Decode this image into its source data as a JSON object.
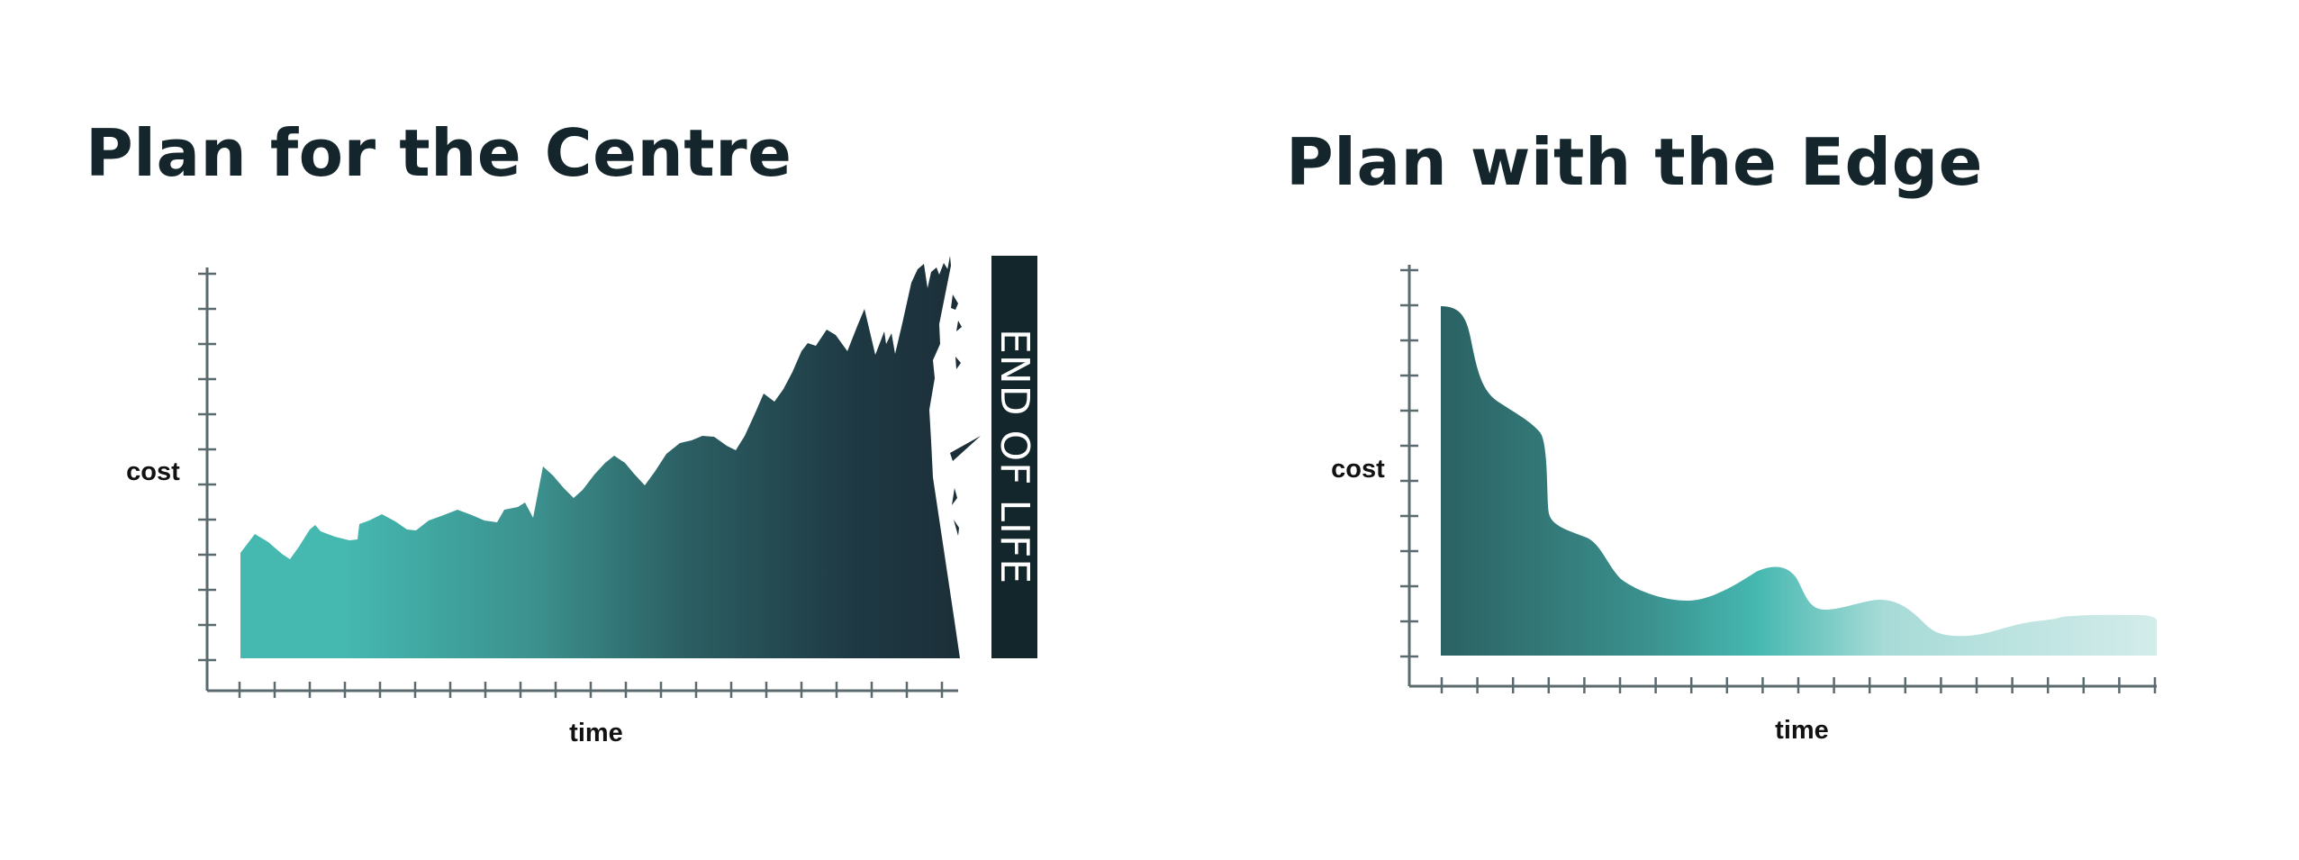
{
  "chart_data": [
    {
      "type": "area",
      "title": "Plan for the Centre",
      "xlabel": "time",
      "ylabel": "cost",
      "x": [
        0,
        1,
        2,
        3,
        4,
        5,
        6,
        7,
        8,
        9,
        10,
        11,
        12,
        13,
        14,
        15,
        16,
        17,
        18,
        19,
        20
      ],
      "values": [
        3.1,
        3.3,
        3.2,
        3.4,
        3.3,
        3.5,
        3.6,
        3.6,
        3.7,
        3.9,
        4.4,
        4.3,
        4.6,
        4.9,
        5.0,
        5.5,
        6.4,
        7.2,
        8.1,
        9.5,
        10.0
      ],
      "annotation": "END OF LIFE",
      "colors": {
        "start": "#45b8b0",
        "end": "#1c2f38",
        "band": "#13262b"
      },
      "grid": false
    },
    {
      "type": "area",
      "title": "Plan with the Edge",
      "xlabel": "time",
      "ylabel": "cost",
      "x": [
        0,
        1,
        2,
        3,
        4,
        5,
        6,
        7,
        8,
        9,
        10,
        11,
        12,
        13,
        14,
        15,
        16,
        17,
        18,
        19,
        20
      ],
      "values": [
        10.0,
        7.8,
        6.8,
        4.0,
        3.5,
        2.3,
        1.7,
        1.8,
        2.4,
        1.3,
        1.5,
        1.2,
        0.5,
        0.7,
        0.8,
        1.0,
        1.1,
        1.1,
        1.0,
        1.1,
        1.1
      ],
      "colors": {
        "start": "#2b6163",
        "mid": "#45b8b0",
        "end": "#d3ecea"
      },
      "grid": false
    }
  ]
}
